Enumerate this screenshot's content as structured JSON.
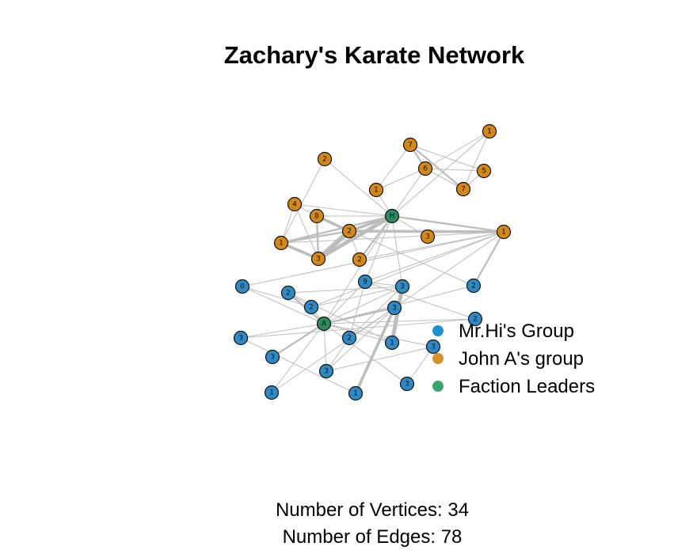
{
  "title": "Zachary's Karate Network",
  "colors": {
    "mrhi": "#2f8ac4",
    "john": "#d4881c",
    "leader": "#2b8a5e",
    "edge": "#bdbdbd",
    "legend_mrhi": "#1f8fd0",
    "legend_john": "#d4922f",
    "legend_leader": "#3aa573"
  },
  "legend": [
    {
      "label": "Mr.Hi's Group",
      "color_key": "legend_mrhi"
    },
    {
      "label": "John A's group",
      "color_key": "legend_john"
    },
    {
      "label": "Faction Leaders",
      "color_key": "legend_leader"
    }
  ],
  "nodes": [
    {
      "id": "n1",
      "label": "1",
      "group": "john"
    },
    {
      "id": "n2",
      "label": "6",
      "group": "john"
    },
    {
      "id": "n3",
      "label": "7",
      "group": "john"
    },
    {
      "id": "n4",
      "label": "5",
      "group": "john"
    },
    {
      "id": "n5",
      "label": "7",
      "group": "john"
    },
    {
      "id": "n6",
      "label": "1",
      "group": "john"
    },
    {
      "id": "n7",
      "label": "2",
      "group": "john"
    },
    {
      "id": "n8",
      "label": "H",
      "group": "leader"
    },
    {
      "id": "n9",
      "label": "4",
      "group": "john"
    },
    {
      "id": "n10",
      "label": "8",
      "group": "john"
    },
    {
      "id": "n11",
      "label": "2",
      "group": "john"
    },
    {
      "id": "n12",
      "label": "1",
      "group": "john"
    },
    {
      "id": "n13",
      "label": "3",
      "group": "john"
    },
    {
      "id": "n14",
      "label": "2",
      "group": "john"
    },
    {
      "id": "n15",
      "label": "3",
      "group": "john"
    },
    {
      "id": "n16",
      "label": "1",
      "group": "john"
    },
    {
      "id": "n17",
      "label": "0",
      "group": "mrhi"
    },
    {
      "id": "n18",
      "label": "9",
      "group": "mrhi"
    },
    {
      "id": "n19",
      "label": "2",
      "group": "mrhi"
    },
    {
      "id": "n20",
      "label": "3",
      "group": "mrhi"
    },
    {
      "id": "n21",
      "label": "2",
      "group": "mrhi"
    },
    {
      "id": "n22",
      "label": "2",
      "group": "mrhi"
    },
    {
      "id": "n23",
      "label": "3",
      "group": "mrhi"
    },
    {
      "id": "n24",
      "label": "A",
      "group": "leader"
    },
    {
      "id": "n25",
      "label": "2",
      "group": "mrhi"
    },
    {
      "id": "n26",
      "label": "3",
      "group": "mrhi"
    },
    {
      "id": "n27",
      "label": "3",
      "group": "mrhi"
    },
    {
      "id": "n28",
      "label": "2",
      "group": "mrhi"
    },
    {
      "id": "n29",
      "label": "1",
      "group": "mrhi"
    },
    {
      "id": "n30",
      "label": "3",
      "group": "mrhi"
    },
    {
      "id": "n31",
      "label": "3",
      "group": "mrhi"
    },
    {
      "id": "n32",
      "label": "1",
      "group": "mrhi"
    },
    {
      "id": "n33",
      "label": "1",
      "group": "mrhi"
    },
    {
      "id": "n34",
      "label": "3",
      "group": "mrhi"
    }
  ],
  "edges": [
    [
      "n1",
      "n2",
      1
    ],
    [
      "n1",
      "n3",
      1
    ],
    [
      "n1",
      "n8",
      1
    ],
    [
      "n2",
      "n3",
      1
    ],
    [
      "n2",
      "n4",
      1
    ],
    [
      "n2",
      "n5",
      2
    ],
    [
      "n3",
      "n4",
      1
    ],
    [
      "n3",
      "n5",
      2
    ],
    [
      "n5",
      "n4",
      1
    ],
    [
      "n6",
      "n2",
      1
    ],
    [
      "n6",
      "n8",
      1
    ],
    [
      "n2",
      "n8",
      1
    ],
    [
      "n8",
      "n7",
      1
    ],
    [
      "n8",
      "n11",
      3
    ],
    [
      "n8",
      "n12",
      2
    ],
    [
      "n8",
      "n14",
      2
    ],
    [
      "n8",
      "n15",
      4
    ],
    [
      "n8",
      "n13",
      1
    ],
    [
      "n8",
      "n16",
      2
    ],
    [
      "n8",
      "n10",
      1
    ],
    [
      "n8",
      "n9",
      1
    ],
    [
      "n8",
      "n18",
      1
    ],
    [
      "n8",
      "n24",
      1
    ],
    [
      "n8",
      "n20",
      1
    ],
    [
      "n6",
      "n5",
      1
    ],
    [
      "n15",
      "n10",
      2
    ],
    [
      "n15",
      "n11",
      5
    ],
    [
      "n15",
      "n12",
      3
    ],
    [
      "n15",
      "n9",
      1
    ],
    [
      "n9",
      "n10",
      1
    ],
    [
      "n10",
      "n11",
      3
    ],
    [
      "n11",
      "n16",
      3
    ],
    [
      "n11",
      "n12",
      2
    ],
    [
      "n12",
      "n16",
      1
    ],
    [
      "n9",
      "n12",
      1
    ],
    [
      "n11",
      "n14",
      1
    ],
    [
      "n16",
      "n14",
      1
    ],
    [
      "n7",
      "n12",
      1
    ],
    [
      "n16",
      "n23",
      1
    ],
    [
      "n16",
      "n18",
      1
    ],
    [
      "n17",
      "n24",
      1
    ],
    [
      "n17",
      "n16",
      1
    ],
    [
      "n17",
      "n21",
      1
    ],
    [
      "n21",
      "n24",
      1
    ],
    [
      "n21",
      "n16",
      1
    ],
    [
      "n22",
      "n24",
      1
    ],
    [
      "n22",
      "n10",
      1
    ],
    [
      "n22",
      "n16",
      2
    ],
    [
      "n18",
      "n24",
      1
    ],
    [
      "n18",
      "n28",
      1
    ],
    [
      "n18",
      "n20",
      1
    ],
    [
      "n18",
      "n25",
      1
    ],
    [
      "n24",
      "n19",
      2
    ],
    [
      "n24",
      "n20",
      1
    ],
    [
      "n24",
      "n23",
      2
    ],
    [
      "n24",
      "n25",
      1
    ],
    [
      "n24",
      "n26",
      1
    ],
    [
      "n24",
      "n27",
      2
    ],
    [
      "n24",
      "n29",
      1
    ],
    [
      "n24",
      "n30",
      1
    ],
    [
      "n24",
      "n31",
      1
    ],
    [
      "n24",
      "n32",
      1
    ],
    [
      "n24",
      "n34",
      1
    ],
    [
      "n19",
      "n20",
      1
    ],
    [
      "n19",
      "n21",
      1
    ],
    [
      "n20",
      "n28",
      1
    ],
    [
      "n20",
      "n21",
      1
    ],
    [
      "n23",
      "n28",
      1
    ],
    [
      "n23",
      "n33",
      3
    ],
    [
      "n23",
      "n32",
      1
    ],
    [
      "n23",
      "n30",
      1
    ],
    [
      "n28",
      "n30",
      1
    ],
    [
      "n20",
      "n29",
      4
    ],
    [
      "n19",
      "n29",
      1
    ],
    [
      "n30",
      "n31",
      1
    ],
    [
      "n31",
      "n34",
      1
    ],
    [
      "n25",
      "n26",
      1
    ],
    [
      "n26",
      "n33",
      1
    ]
  ],
  "stats": {
    "vertices_text": "Number of Vertices: 34",
    "edges_text": "Number of Edges: 78"
  }
}
